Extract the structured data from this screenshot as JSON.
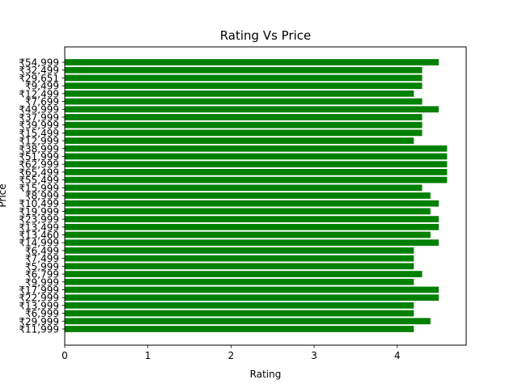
{
  "chart_data": {
    "type": "bar",
    "orientation": "horizontal",
    "title": "Rating Vs Price",
    "xlabel": "Rating",
    "ylabel": "Price",
    "xlim": [
      0,
      4.83
    ],
    "xticks": [
      0,
      1,
      2,
      3,
      4
    ],
    "xtick_labels": [
      "0",
      "1",
      "2",
      "3",
      "4"
    ],
    "bar_color": "#008000",
    "grid": false,
    "categories": [
      "₹11,999",
      "₹29,999",
      "₹6,999",
      "₹13,999",
      "₹22,999",
      "₹17,999",
      "₹9,999",
      "₹6,799",
      "₹5,999",
      "₹7,499",
      "₹6,499",
      "₹14,999",
      "₹13,460",
      "₹13,499",
      "₹23,999",
      "₹19,999",
      "₹10,499",
      "₹8,999",
      "₹15,999",
      "₹55,499",
      "₹65,499",
      "₹62,999",
      "₹51,999",
      "₹38,999",
      "₹12,999",
      "₹15,499",
      "₹39,999",
      "₹37,999",
      "₹49,999",
      "₹7,699",
      "₹12,499",
      "₹9,499",
      "₹29,651",
      "₹32,499",
      "₹54,999"
    ],
    "values": [
      4.2,
      4.4,
      4.2,
      4.2,
      4.5,
      4.5,
      4.2,
      4.3,
      4.2,
      4.2,
      4.2,
      4.5,
      4.4,
      4.5,
      4.5,
      4.4,
      4.5,
      4.4,
      4.3,
      4.6,
      4.6,
      4.6,
      4.6,
      4.6,
      4.2,
      4.3,
      4.3,
      4.3,
      4.5,
      4.3,
      4.2,
      4.3,
      4.3,
      4.3,
      4.5
    ]
  }
}
